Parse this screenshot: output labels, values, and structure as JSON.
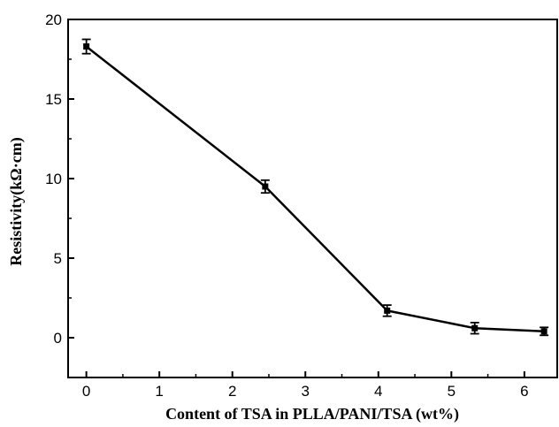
{
  "chart_data": {
    "type": "line",
    "title": "",
    "xlabel": "Content of TSA in PLLA/PANI/TSA (wt%)",
    "ylabel": "Resistivity(kΩ·cm)",
    "xlim": [
      -0.25,
      6.45
    ],
    "ylim": [
      -2.5,
      20
    ],
    "xticks": [
      0,
      1,
      2,
      3,
      4,
      5,
      6
    ],
    "yticks": [
      0,
      5,
      10,
      15,
      20
    ],
    "xtick_labels": [
      "0",
      "1",
      "2",
      "3",
      "4",
      "5",
      "6"
    ],
    "ytick_labels": [
      "0",
      "5",
      "10",
      "15",
      "20"
    ],
    "grid": false,
    "legend": "none",
    "series": [
      {
        "x": [
          0,
          2.45,
          4.12,
          5.32,
          6.27
        ],
        "y": [
          18.3,
          9.5,
          1.7,
          0.6,
          0.4
        ],
        "error": [
          0.45,
          0.4,
          0.35,
          0.35,
          0.25
        ],
        "color": "#000000",
        "marker": "square"
      }
    ]
  }
}
